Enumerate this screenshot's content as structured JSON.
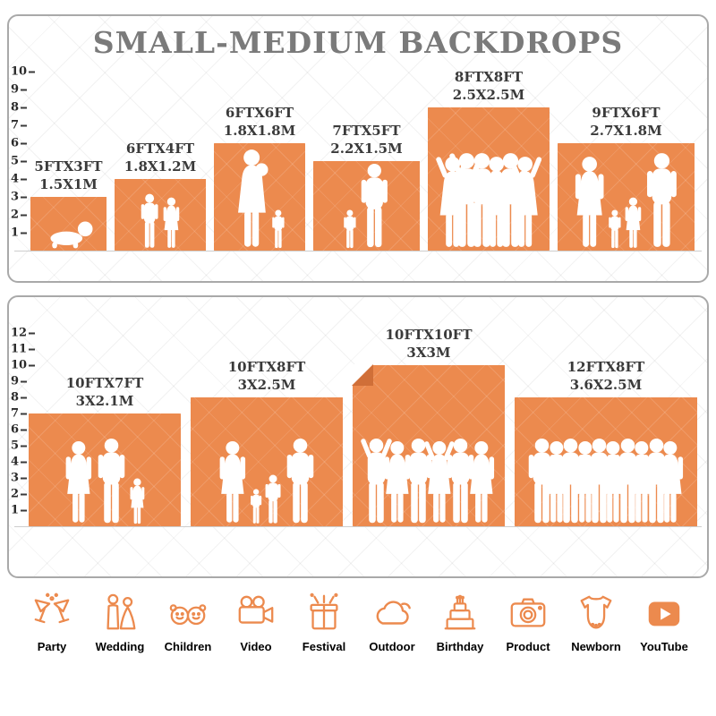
{
  "title": "SMALL-MEDIUM BACKDROPS",
  "colors": {
    "orange": "#EC8A4E",
    "fold": "#D06F38",
    "title_gray": "#7A7A7A",
    "label_dark": "#3A3A3A"
  },
  "top_panel": {
    "ruler": [
      "10",
      "9",
      "8",
      "7",
      "6",
      "5",
      "4",
      "3",
      "2",
      "1"
    ],
    "backdrops": [
      {
        "size_ft": "5FTX3FT",
        "size_m": "1.5X1M",
        "w_ft": 5,
        "h_ft": 3,
        "figures": [
          "crawling-baby"
        ]
      },
      {
        "size_ft": "6FTX4FT",
        "size_m": "1.8X1.2M",
        "w_ft": 6,
        "h_ft": 4,
        "figures": [
          "boy",
          "girl"
        ]
      },
      {
        "size_ft": "6FTX6FT",
        "size_m": "1.8X1.8M",
        "w_ft": 6,
        "h_ft": 6,
        "figures": [
          "mother-with-child",
          "toddler"
        ]
      },
      {
        "size_ft": "7FTX5FT",
        "size_m": "2.2X1.5M",
        "w_ft": 7,
        "h_ft": 5,
        "figures": [
          "toddler",
          "adult-male"
        ]
      },
      {
        "size_ft": "8FTX8FT",
        "size_m": "2.5X2.5M",
        "w_ft": 8,
        "h_ft": 8,
        "figures": [
          "adult-female-arms-up",
          "adult-male-arms-up",
          "adult-male",
          "adult-female",
          "adult-male",
          "adult-female-arms-up"
        ]
      },
      {
        "size_ft": "9FTX6FT",
        "size_m": "2.7X1.8M",
        "w_ft": 9,
        "h_ft": 6,
        "figures": [
          "adult-female",
          "toddler",
          "girl",
          "adult-male"
        ]
      }
    ]
  },
  "bottom_panel": {
    "ruler": [
      "12",
      "11",
      "10",
      "9",
      "8",
      "7",
      "6",
      "5",
      "4",
      "3",
      "2",
      "1"
    ],
    "backdrops": [
      {
        "size_ft": "10FTX7FT",
        "size_m": "3X2.1M",
        "w_ft": 10,
        "h_ft": 7,
        "figures": [
          "adult-female",
          "adult-male",
          "girl"
        ]
      },
      {
        "size_ft": "10FTX8FT",
        "size_m": "3X2.5M",
        "w_ft": 10,
        "h_ft": 8,
        "figures": [
          "adult-female",
          "toddler",
          "boy",
          "adult-male"
        ]
      },
      {
        "size_ft": "10FTX10FT",
        "size_m": "3X3M",
        "w_ft": 10,
        "h_ft": 10,
        "folded_corner": true,
        "figures": [
          "adult-male-arms-up",
          "adult-female",
          "adult-male",
          "adult-female-arms-up",
          "adult-male",
          "adult-female"
        ]
      },
      {
        "size_ft": "12FTX8FT",
        "size_m": "3.6X2.5M",
        "w_ft": 12,
        "h_ft": 8,
        "figures": [
          "adult-male",
          "adult-female",
          "adult-male",
          "adult-female",
          "adult-male",
          "adult-female",
          "adult-male",
          "adult-female",
          "adult-male",
          "adult-female"
        ]
      }
    ]
  },
  "categories": [
    {
      "label": "Party",
      "icon": "cocktail-icon"
    },
    {
      "label": "Wedding",
      "icon": "couple-icon"
    },
    {
      "label": "Children",
      "icon": "children-icon"
    },
    {
      "label": "Video",
      "icon": "video-camera-icon"
    },
    {
      "label": "Festival",
      "icon": "gift-icon"
    },
    {
      "label": "Outdoor",
      "icon": "cloud-icon"
    },
    {
      "label": "Birthday",
      "icon": "cake-icon"
    },
    {
      "label": "Product",
      "icon": "camera-icon"
    },
    {
      "label": "Newborn",
      "icon": "onesie-icon"
    },
    {
      "label": "YouTube",
      "icon": "play-icon"
    }
  ]
}
